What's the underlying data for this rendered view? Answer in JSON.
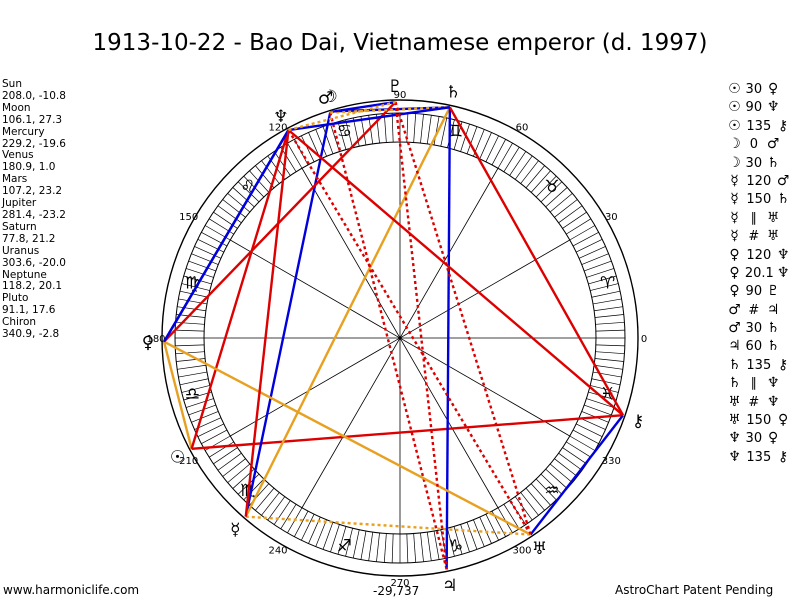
{
  "title": "1913-10-22 - Bao Dai, Vietnamese emperor (d. 1997)",
  "positions": [
    {
      "name": "Sun",
      "values": "208.0, -10.8"
    },
    {
      "name": "Moon",
      "values": "106.1, 27.3"
    },
    {
      "name": "Mercury",
      "values": "229.2, -19.6"
    },
    {
      "name": "Venus",
      "values": "180.9, 1.0"
    },
    {
      "name": "Mars",
      "values": "107.2, 23.2"
    },
    {
      "name": "Jupiter",
      "values": "281.4, -23.2"
    },
    {
      "name": "Saturn",
      "values": "77.8, 21.2"
    },
    {
      "name": "Uranus",
      "values": "303.6, -20.0"
    },
    {
      "name": "Neptune",
      "values": "118.2, 20.1"
    },
    {
      "name": "Pluto",
      "values": "91.1, 17.6"
    },
    {
      "name": "Chiron",
      "values": "340.9, -2.8"
    }
  ],
  "aspects_list": [
    {
      "p1": "☉",
      "angle": "30",
      "p2": "♀"
    },
    {
      "p1": "☉",
      "angle": "90",
      "p2": "♆"
    },
    {
      "p1": "☉",
      "angle": "135",
      "p2": "⚷"
    },
    {
      "p1": "☽",
      "angle": "0",
      "p2": "♂"
    },
    {
      "p1": "☽",
      "angle": "30",
      "p2": "♄"
    },
    {
      "p1": "☿",
      "angle": "120",
      "p2": "♂"
    },
    {
      "p1": "☿",
      "angle": "150",
      "p2": "♄"
    },
    {
      "p1": "☿",
      "angle": "∥",
      "p2": "♅"
    },
    {
      "p1": "☿",
      "angle": "#",
      "p2": "♅"
    },
    {
      "p1": "♀",
      "angle": "120",
      "p2": "♆"
    },
    {
      "p1": "♀",
      "angle": "20.1",
      "p2": "♆"
    },
    {
      "p1": "♀",
      "angle": "90",
      "p2": "♇"
    },
    {
      "p1": "♂",
      "angle": "#",
      "p2": "♃"
    },
    {
      "p1": "♂",
      "angle": "30",
      "p2": "♄"
    },
    {
      "p1": "♃",
      "angle": "60",
      "p2": "♄"
    },
    {
      "p1": "♄",
      "angle": "135",
      "p2": "⚷"
    },
    {
      "p1": "♄",
      "angle": "∥",
      "p2": "♆"
    },
    {
      "p1": "♅",
      "angle": "#",
      "p2": "♆"
    },
    {
      "p1": "♅",
      "angle": "150",
      "p2": "♀"
    },
    {
      "p1": "♆",
      "angle": "30",
      "p2": "♀"
    },
    {
      "p1": "♆",
      "angle": "135",
      "p2": "⚷"
    }
  ],
  "wheel": {
    "degree_labels": [
      "0",
      "30",
      "60",
      "90",
      "120",
      "150",
      "180",
      "210",
      "240",
      "270",
      "300",
      "330"
    ],
    "signs": [
      "♈",
      "♉",
      "♊",
      "♋",
      "♌",
      "♍",
      "♎",
      "♏",
      "♐",
      "♑",
      "♒",
      "♓"
    ],
    "center_value": "-29,737",
    "planets": [
      {
        "glyph": "☉",
        "lon": 208.0,
        "color": "#000000"
      },
      {
        "glyph": "☽",
        "lon": 106.1,
        "color": "#000000"
      },
      {
        "glyph": "☿",
        "lon": 229.2,
        "color": "#000000"
      },
      {
        "glyph": "♀",
        "lon": 180.9,
        "color": "#000000"
      },
      {
        "glyph": "♂",
        "lon": 107.2,
        "color": "#000000"
      },
      {
        "glyph": "♃",
        "lon": 281.4,
        "color": "#000000"
      },
      {
        "glyph": "♄",
        "lon": 77.8,
        "color": "#000000"
      },
      {
        "glyph": "♅",
        "lon": 303.6,
        "color": "#000000"
      },
      {
        "glyph": "♆",
        "lon": 118.2,
        "color": "#000000"
      },
      {
        "glyph": "♇",
        "lon": 91.1,
        "color": "#000000"
      },
      {
        "glyph": "⚷",
        "lon": 340.9,
        "color": "#000000"
      }
    ],
    "aspect_lines": [
      {
        "from": "Sun",
        "to": "Venus",
        "color": "#e8a020",
        "style": "solid"
      },
      {
        "from": "Sun",
        "to": "Neptune",
        "color": "#dd0000",
        "style": "solid"
      },
      {
        "from": "Sun",
        "to": "Chiron",
        "color": "#dd0000",
        "style": "solid"
      },
      {
        "from": "Moon",
        "to": "Mars",
        "color": "#0000dd",
        "style": "solid"
      },
      {
        "from": "Moon",
        "to": "Saturn",
        "color": "#0000dd",
        "style": "solid"
      },
      {
        "from": "Mercury",
        "to": "Mars",
        "color": "#0000dd",
        "style": "solid"
      },
      {
        "from": "Mercury",
        "to": "Saturn",
        "color": "#e8a020",
        "style": "solid"
      },
      {
        "from": "Mercury",
        "to": "Uranus",
        "color": "#e8a020",
        "style": "dotted"
      },
      {
        "from": "Venus",
        "to": "Neptune",
        "color": "#0000dd",
        "style": "solid"
      },
      {
        "from": "Venus",
        "to": "Pluto",
        "color": "#dd0000",
        "style": "solid"
      },
      {
        "from": "Mars",
        "to": "Jupiter",
        "color": "#dd0000",
        "style": "dotted"
      },
      {
        "from": "Mars",
        "to": "Saturn",
        "color": "#e8a020",
        "style": "dotted"
      },
      {
        "from": "Jupiter",
        "to": "Saturn",
        "color": "#0000dd",
        "style": "solid"
      },
      {
        "from": "Saturn",
        "to": "Chiron",
        "color": "#dd0000",
        "style": "solid"
      },
      {
        "from": "Saturn",
        "to": "Neptune",
        "color": "#0000dd",
        "style": "solid"
      },
      {
        "from": "Uranus",
        "to": "Neptune",
        "color": "#dd0000",
        "style": "dotted"
      },
      {
        "from": "Uranus",
        "to": "Chiron",
        "color": "#0000dd",
        "style": "solid"
      },
      {
        "from": "Uranus",
        "to": "Venus",
        "color": "#e8a020",
        "style": "solid"
      },
      {
        "from": "Neptune",
        "to": "Venus",
        "color": "#0000dd",
        "style": "solid"
      },
      {
        "from": "Neptune",
        "to": "Chiron",
        "color": "#dd0000",
        "style": "solid"
      },
      {
        "from": "Neptune",
        "to": "Mercury",
        "color": "#dd0000",
        "style": "solid"
      },
      {
        "from": "Pluto",
        "to": "Uranus",
        "color": "#dd0000",
        "style": "dotted"
      },
      {
        "from": "Pluto",
        "to": "Jupiter",
        "color": "#dd0000",
        "style": "dotted"
      },
      {
        "from": "Moon",
        "to": "Pluto",
        "color": "#0000dd",
        "style": "solid"
      },
      {
        "from": "Neptune",
        "to": "Pluto",
        "color": "#e8a020",
        "style": "dotted"
      }
    ]
  },
  "footer": {
    "left": "www.harmoniclife.com",
    "right": "AstroChart Patent Pending"
  }
}
